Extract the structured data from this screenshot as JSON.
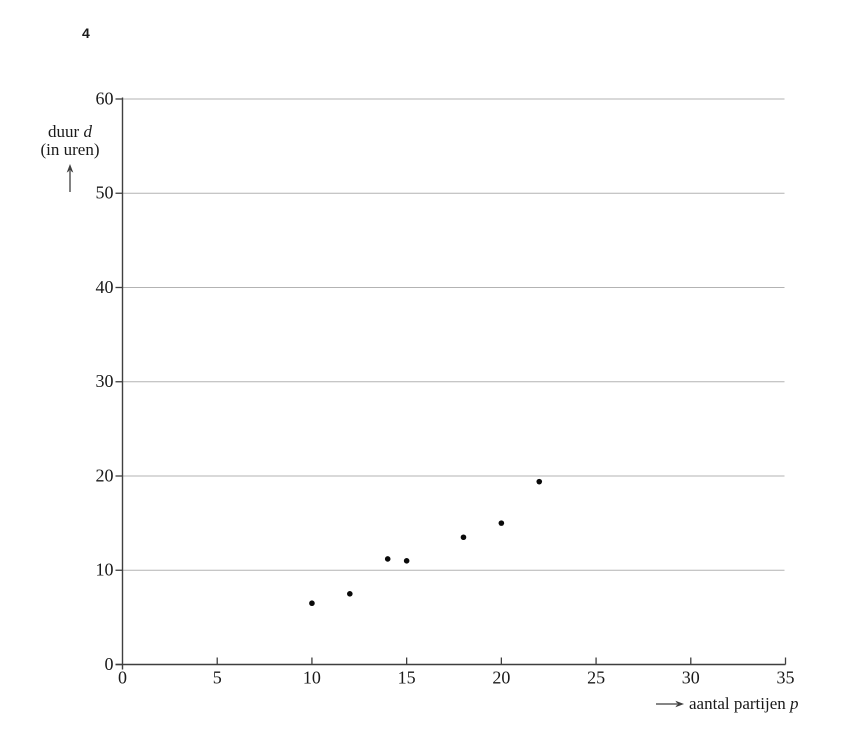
{
  "page": {
    "question_number": "4"
  },
  "chart_data": {
    "type": "scatter",
    "title": "",
    "xlabel": {
      "text": "aantal partijen",
      "var": "p"
    },
    "ylabel": {
      "text": "duur",
      "var": "d",
      "unit": "(in uren)"
    },
    "xlim": [
      0,
      35
    ],
    "ylim": [
      0,
      60
    ],
    "xticks": [
      0,
      5,
      10,
      15,
      20,
      25,
      30,
      35
    ],
    "yticks": [
      0,
      10,
      20,
      30,
      40,
      50,
      60
    ],
    "grid": "horizontal-gridlines-only",
    "legend": "none",
    "points": [
      {
        "p": 10,
        "d": 6.5
      },
      {
        "p": 12,
        "d": 7.5
      },
      {
        "p": 14,
        "d": 11.2
      },
      {
        "p": 15,
        "d": 11.0
      },
      {
        "p": 18,
        "d": 13.5
      },
      {
        "p": 20,
        "d": 15.0
      },
      {
        "p": 22,
        "d": 19.4
      }
    ],
    "colors": {
      "point": "#0a0a0a",
      "axis": "#3f3f3f",
      "gridline": "#b3b3b3",
      "text": "#1a1a1a"
    }
  }
}
